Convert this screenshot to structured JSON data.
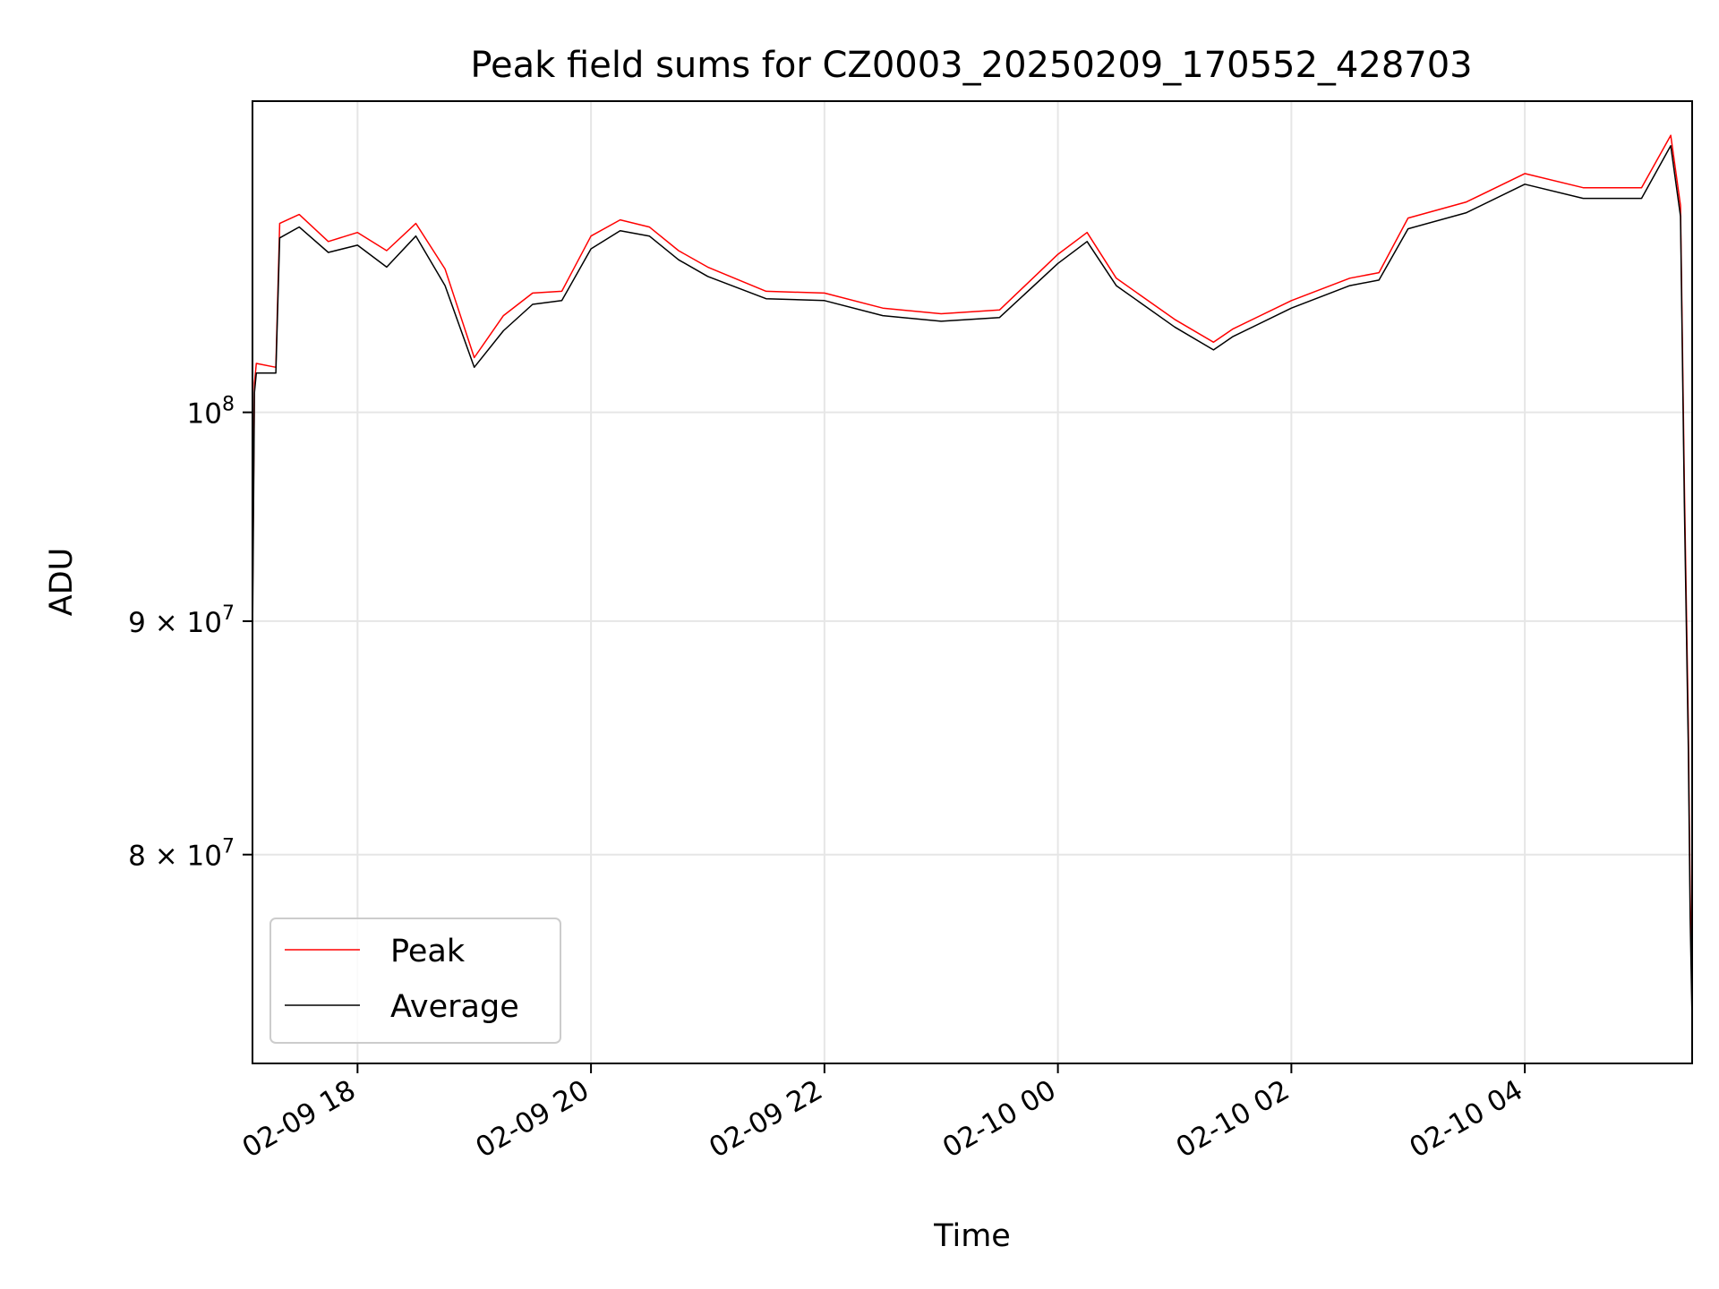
{
  "chart_data": {
    "type": "line",
    "title": "Peak field sums for CZ0003_20250209_170552_428703",
    "xlabel": "Time",
    "ylabel": "ADU",
    "y_scale": "log",
    "grid": true,
    "legend_position": "lower-left",
    "x_range": [
      "2025-02-09 17:06",
      "2025-02-10 05:26"
    ],
    "y_range": [
      72000000,
      117000000
    ],
    "x_ticks": [
      {
        "value": "2025-02-09 18:00",
        "label": "02-09 18"
      },
      {
        "value": "2025-02-09 20:00",
        "label": "02-09 20"
      },
      {
        "value": "2025-02-09 22:00",
        "label": "02-09 22"
      },
      {
        "value": "2025-02-10 00:00",
        "label": "02-10 00"
      },
      {
        "value": "2025-02-10 02:00",
        "label": "02-10 02"
      },
      {
        "value": "2025-02-10 04:00",
        "label": "02-10 04"
      }
    ],
    "y_ticks": [
      {
        "value": 100000000,
        "base": "10",
        "exp": "8",
        "mantissa": ""
      },
      {
        "value": 90000000,
        "base": "10",
        "exp": "7",
        "mantissa": "9"
      },
      {
        "value": 80000000,
        "base": "10",
        "exp": "7",
        "mantissa": "8"
      }
    ],
    "series": [
      {
        "name": "Peak",
        "color": "#ff0000",
        "x": [
          "2025-02-09 17:06",
          "2025-02-09 17:07",
          "2025-02-09 17:08",
          "2025-02-09 17:18",
          "2025-02-09 17:20",
          "2025-02-09 17:30",
          "2025-02-09 17:45",
          "2025-02-09 18:00",
          "2025-02-09 18:15",
          "2025-02-09 18:30",
          "2025-02-09 18:45",
          "2025-02-09 19:00",
          "2025-02-09 19:15",
          "2025-02-09 19:30",
          "2025-02-09 19:45",
          "2025-02-09 20:00",
          "2025-02-09 20:15",
          "2025-02-09 20:30",
          "2025-02-09 20:45",
          "2025-02-09 21:00",
          "2025-02-09 21:30",
          "2025-02-09 22:00",
          "2025-02-09 22:30",
          "2025-02-09 23:00",
          "2025-02-09 23:30",
          "2025-02-10 00:00",
          "2025-02-10 00:15",
          "2025-02-10 00:30",
          "2025-02-10 01:00",
          "2025-02-10 01:20",
          "2025-02-10 01:30",
          "2025-02-10 02:00",
          "2025-02-10 02:30",
          "2025-02-10 02:45",
          "2025-02-10 03:00",
          "2025-02-10 03:30",
          "2025-02-10 04:00",
          "2025-02-10 04:30",
          "2025-02-10 05:00",
          "2025-02-10 05:15",
          "2025-02-10 05:20",
          "2025-02-10 05:22",
          "2025-02-10 05:24",
          "2025-02-10 05:25",
          "2025-02-10 05:26"
        ],
        "y": [
          90500000,
          101500000,
          102500000,
          102300000,
          110000000,
          110500000,
          109000000,
          109500000,
          108500000,
          110000000,
          107500000,
          102800000,
          105000000,
          106200000,
          106300000,
          109300000,
          110200000,
          109800000,
          108500000,
          107600000,
          106300000,
          106200000,
          105400000,
          105100000,
          105300000,
          108300000,
          109500000,
          107000000,
          104800000,
          103600000,
          104300000,
          105800000,
          107000000,
          107300000,
          110300000,
          111200000,
          112800000,
          112000000,
          112000000,
          115000000,
          111000000,
          96500000,
          85500000,
          78500000,
          74000000
        ]
      },
      {
        "name": "Average",
        "color": "#000000",
        "x": [
          "2025-02-09 17:06",
          "2025-02-09 17:07",
          "2025-02-09 17:08",
          "2025-02-09 17:18",
          "2025-02-09 17:20",
          "2025-02-09 17:30",
          "2025-02-09 17:45",
          "2025-02-09 18:00",
          "2025-02-09 18:15",
          "2025-02-09 18:30",
          "2025-02-09 18:45",
          "2025-02-09 19:00",
          "2025-02-09 19:15",
          "2025-02-09 19:30",
          "2025-02-09 19:45",
          "2025-02-09 20:00",
          "2025-02-09 20:15",
          "2025-02-09 20:30",
          "2025-02-09 20:45",
          "2025-02-09 21:00",
          "2025-02-09 21:30",
          "2025-02-09 22:00",
          "2025-02-09 22:30",
          "2025-02-09 23:00",
          "2025-02-09 23:30",
          "2025-02-10 00:00",
          "2025-02-10 00:15",
          "2025-02-10 00:30",
          "2025-02-10 01:00",
          "2025-02-10 01:20",
          "2025-02-10 01:30",
          "2025-02-10 02:00",
          "2025-02-10 02:30",
          "2025-02-10 02:45",
          "2025-02-10 03:00",
          "2025-02-10 03:30",
          "2025-02-10 04:00",
          "2025-02-10 04:30",
          "2025-02-10 05:00",
          "2025-02-10 05:15",
          "2025-02-10 05:20",
          "2025-02-10 05:22",
          "2025-02-10 05:24",
          "2025-02-10 05:25",
          "2025-02-10 05:26"
        ],
        "y": [
          89000000,
          101000000,
          102000000,
          102000000,
          109200000,
          109800000,
          108400000,
          108800000,
          107600000,
          109300000,
          106600000,
          102300000,
          104200000,
          105600000,
          105800000,
          108600000,
          109600000,
          109300000,
          108000000,
          107100000,
          105900000,
          105800000,
          105000000,
          104700000,
          104900000,
          107800000,
          109000000,
          106600000,
          104400000,
          103200000,
          103900000,
          105400000,
          106600000,
          106900000,
          109700000,
          110600000,
          112200000,
          111400000,
          111400000,
          114400000,
          110400000,
          95500000,
          84500000,
          77500000,
          73500000
        ]
      }
    ]
  }
}
